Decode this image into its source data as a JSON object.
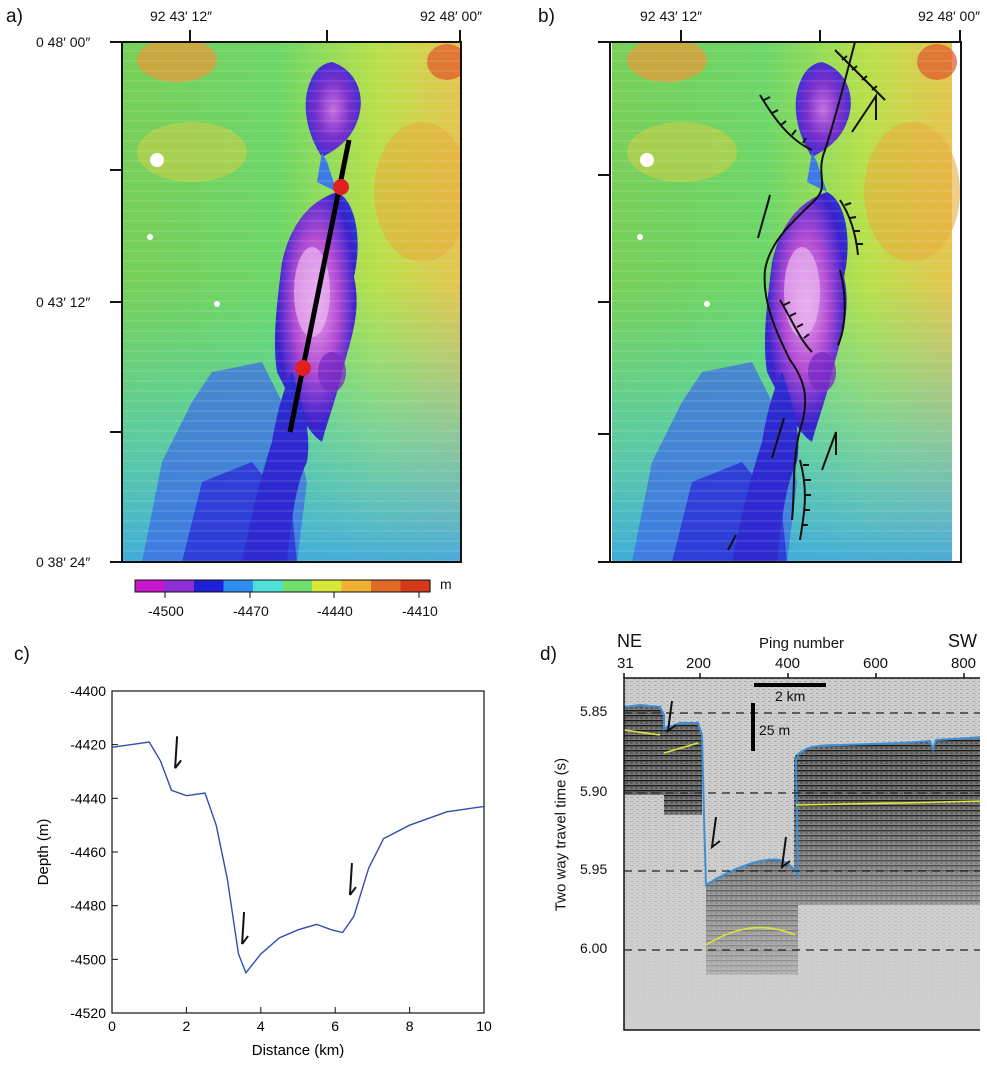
{
  "panel_labels": [
    "a)",
    "b)",
    "c)",
    "d)"
  ],
  "map_a": {
    "top_lon_ticks": [
      "92 43′ 12″",
      "92 48′ 00″"
    ],
    "left_lat_ticks": [
      "0 48′ 00″",
      "0 43′ 12″",
      "0 38′ 24″"
    ]
  },
  "map_b": {
    "top_lon_ticks": [
      "92 43′ 12″",
      "92 48′ 00″"
    ]
  },
  "colorbar": {
    "unit": "m",
    "ticks": [
      "-4500",
      "-4470",
      "-4440",
      "-4410"
    ],
    "colors": [
      "#c617c9",
      "#8d2fd6",
      "#1f1fd8",
      "#2f8ef0",
      "#4fe0d8",
      "#6fe070",
      "#d8e83a",
      "#f0b030",
      "#e06a28",
      "#d43a1a"
    ]
  },
  "chart_data": [
    {
      "type": "line",
      "xlabel": "Distance (km)",
      "ylabel": "Depth (m)",
      "xlim": [
        0,
        10
      ],
      "ylim": [
        -4520,
        -4400
      ],
      "x_ticks": [
        "0",
        "2",
        "4",
        "6",
        "8",
        "10"
      ],
      "y_ticks": [
        "-4400",
        "-4420",
        "-4440",
        "-4460",
        "-4480",
        "-4500",
        "-4520"
      ],
      "series": [
        {
          "color": "#2f4fb0",
          "x": [
            0,
            0.5,
            1.0,
            1.3,
            1.6,
            2.0,
            2.5,
            2.8,
            3.1,
            3.4,
            3.6,
            4.0,
            4.5,
            5.0,
            5.5,
            5.9,
            6.2,
            6.5,
            6.9,
            7.3,
            8.0,
            9.0,
            10.0
          ],
          "y": [
            -4421,
            -4420,
            -4419,
            -4426,
            -4437,
            -4439,
            -4438,
            -4450,
            -4470,
            -4498,
            -4505,
            -4498,
            -4492,
            -4489,
            -4487,
            -4489,
            -4490,
            -4484,
            -4466,
            -4455,
            -4450,
            -4445,
            -4443
          ]
        }
      ],
      "fault_arrows_x": [
        1.75,
        3.55,
        6.45
      ]
    }
  ],
  "seismic": {
    "direction_left": "NE",
    "direction_right": "SW",
    "top_axis_label": "Ping number",
    "ping_ticks": [
      "31",
      "200",
      "400",
      "600",
      "800"
    ],
    "ylabel": "Two way travel time (s)",
    "time_ticks": [
      "5.85",
      "5.90",
      "5.95",
      "6.00"
    ],
    "scale_h": "2 km",
    "scale_v": "25 m"
  }
}
